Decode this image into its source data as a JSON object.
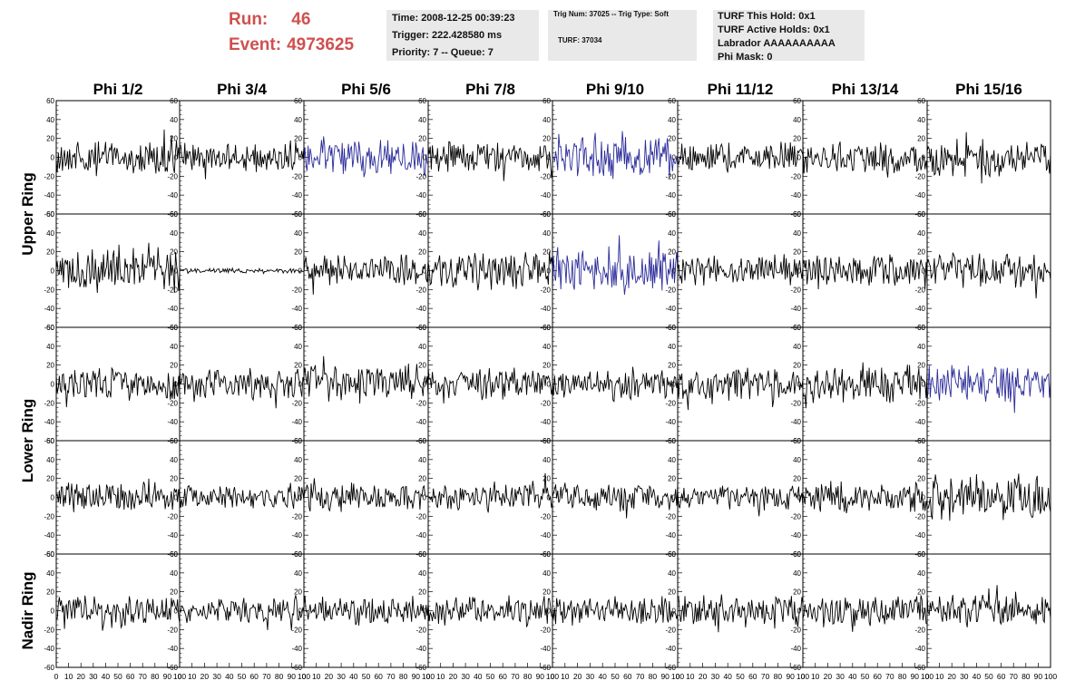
{
  "run": {
    "label": "Run:",
    "value": "46"
  },
  "event": {
    "label": "Event:",
    "value": "4973625"
  },
  "time_box": {
    "time": "Time: 2008-12-25 00:39:23",
    "trigger": "Trigger: 222.428580 ms",
    "priority": "Priority: 7 -- Queue: 7"
  },
  "trig_box": {
    "trig": "Trig Num: 37025 -- Trig Type: Soft",
    "turf": "TURF: 37034"
  },
  "turf_box": {
    "this_hold": "TURF This Hold: 0x1",
    "active_holds": "TURF Active Holds: 0x1",
    "labrador": "Labrador AAAAAAAAAA",
    "phi_mask": "Phi Mask: 0"
  },
  "columns": [
    "Phi 1/2",
    "Phi 3/4",
    "Phi 5/6",
    "Phi 7/8",
    "Phi 9/10",
    "Phi 11/12",
    "Phi 13/14",
    "Phi 15/16"
  ],
  "row_groups": [
    {
      "label": "Upper Ring",
      "rows": [
        0,
        1
      ]
    },
    {
      "label": "Lower Ring",
      "rows": [
        2,
        3
      ]
    },
    {
      "label": "Nadir Ring",
      "rows": [
        4
      ]
    }
  ],
  "axes": {
    "y_range": [
      -60,
      60
    ],
    "y_ticks": [
      "60",
      "40",
      "20",
      "0",
      "-20",
      "-40",
      "-60"
    ],
    "x_range": [
      0,
      100
    ],
    "x_ticks": [
      "0",
      "10",
      "20",
      "30",
      "40",
      "50",
      "60",
      "70",
      "80",
      "90",
      "100"
    ]
  },
  "colors": {
    "trace": "#000000",
    "highlight_trace": "#2b2b9a",
    "title_red": "#d0504f",
    "info_bg": "#e9e9e9"
  },
  "waveforms": [
    [
      {
        "amp": 14,
        "color": "black"
      },
      {
        "amp": 12,
        "color": "black"
      },
      {
        "amp": 16,
        "color": "blue"
      },
      {
        "amp": 14,
        "color": "black"
      },
      {
        "amp": 18,
        "color": "blue"
      },
      {
        "amp": 12,
        "color": "black"
      },
      {
        "amp": 14,
        "color": "black"
      },
      {
        "amp": 16,
        "color": "black"
      }
    ],
    [
      {
        "amp": 20,
        "color": "black"
      },
      {
        "amp": 2,
        "color": "black"
      },
      {
        "amp": 13,
        "color": "black"
      },
      {
        "amp": 15,
        "color": "black"
      },
      {
        "amp": 20,
        "color": "blue"
      },
      {
        "amp": 12,
        "color": "black"
      },
      {
        "amp": 13,
        "color": "black"
      },
      {
        "amp": 16,
        "color": "black"
      }
    ],
    [
      {
        "amp": 14,
        "color": "black"
      },
      {
        "amp": 14,
        "color": "black"
      },
      {
        "amp": 16,
        "color": "black"
      },
      {
        "amp": 13,
        "color": "black"
      },
      {
        "amp": 14,
        "color": "black"
      },
      {
        "amp": 14,
        "color": "black"
      },
      {
        "amp": 15,
        "color": "black"
      },
      {
        "amp": 16,
        "color": "blue"
      }
    ],
    [
      {
        "amp": 12,
        "color": "black"
      },
      {
        "amp": 10,
        "color": "black"
      },
      {
        "amp": 12,
        "color": "black"
      },
      {
        "amp": 13,
        "color": "black"
      },
      {
        "amp": 12,
        "color": "black"
      },
      {
        "amp": 10,
        "color": "black"
      },
      {
        "amp": 13,
        "color": "black"
      },
      {
        "amp": 20,
        "color": "black"
      }
    ],
    [
      {
        "amp": 14,
        "color": "black"
      },
      {
        "amp": 10,
        "color": "black"
      },
      {
        "amp": 12,
        "color": "black"
      },
      {
        "amp": 12,
        "color": "black"
      },
      {
        "amp": 12,
        "color": "black"
      },
      {
        "amp": 14,
        "color": "black"
      },
      {
        "amp": 13,
        "color": "black"
      },
      {
        "amp": 13,
        "color": "black"
      }
    ]
  ]
}
